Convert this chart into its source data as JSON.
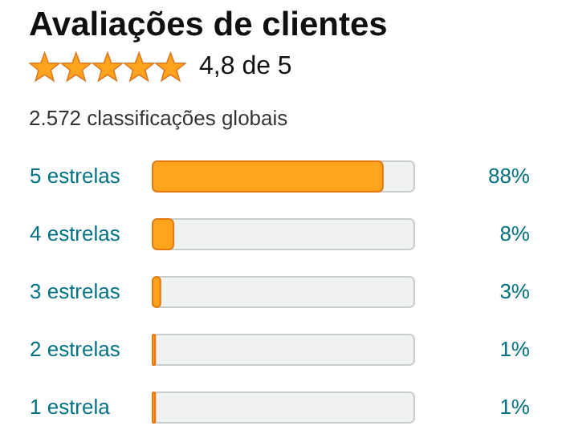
{
  "chart_data": {
    "type": "bar",
    "orientation": "horizontal",
    "title": "Avaliações de clientes",
    "annotations": [
      "4,8 de 5",
      "2.572 classificações globais"
    ],
    "categories": [
      "5 estrelas",
      "4 estrelas",
      "3 estrelas",
      "2 estrelas",
      "1 estrela"
    ],
    "values": [
      88,
      8,
      3,
      1,
      1
    ],
    "value_labels": [
      "88%",
      "8%",
      "3%",
      "1%",
      "1%"
    ],
    "color": "#ffa41c",
    "xlim": [
      0,
      100
    ],
    "tick_labels": "y"
  }
}
